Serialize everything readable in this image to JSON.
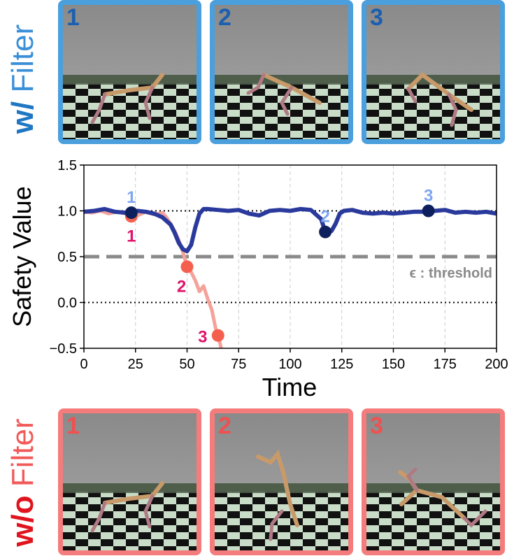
{
  "top_row": {
    "label_prefix": "w/",
    "label_word": "Filter",
    "prefix_color": "#1f77c4",
    "word_color": "#3a8fd8",
    "frame_color": "#4a9fdc",
    "number_color": "#1a5fb0",
    "frames": [
      {
        "number": "1"
      },
      {
        "number": "2"
      },
      {
        "number": "3"
      }
    ]
  },
  "bottom_row": {
    "label_prefix": "w/o",
    "label_word": "Filter",
    "prefix_color": "#e0141e",
    "word_color": "#f25a5a",
    "frame_color": "#f47c7c",
    "number_color": "#f05050",
    "frames": [
      {
        "number": "1"
      },
      {
        "number": "2"
      },
      {
        "number": "3"
      }
    ]
  },
  "chart_data": {
    "type": "line",
    "xlabel": "Time",
    "ylabel": "Safety Value",
    "xlim": [
      0,
      200
    ],
    "ylim": [
      -0.5,
      1.5
    ],
    "xticks": [
      0,
      25,
      50,
      75,
      100,
      125,
      150,
      175,
      200
    ],
    "yticks": [
      -0.5,
      0.0,
      0.5,
      1.0,
      1.5
    ],
    "ytick_labels": [
      "−0.5",
      "0.0",
      "0.5",
      "1.0",
      "1.5"
    ],
    "threshold": {
      "value": 0.5,
      "label": "ϵ : threshold",
      "color": "#8a8a8a"
    },
    "reference_lines": [
      1.0,
      0.0
    ],
    "series": [
      {
        "name": "w/o Filter",
        "color": "#f4a29a",
        "x": [
          0,
          4,
          8,
          12,
          16,
          20,
          23,
          26,
          30,
          34,
          38,
          40,
          42,
          44,
          46,
          48,
          50,
          52,
          54,
          56,
          58,
          60,
          62,
          64,
          65,
          66,
          67
        ],
        "y": [
          0.99,
          0.98,
          1.0,
          0.97,
          0.99,
          0.97,
          0.94,
          0.95,
          0.99,
          0.96,
          0.98,
          0.93,
          0.86,
          0.78,
          0.68,
          0.55,
          0.39,
          0.33,
          0.24,
          0.12,
          0.18,
          0.04,
          -0.08,
          -0.3,
          -0.36,
          -0.45,
          -0.55
        ],
        "markers": [
          {
            "label": "1",
            "x": 23,
            "y": 0.94
          },
          {
            "label": "2",
            "x": 50,
            "y": 0.39
          },
          {
            "label": "3",
            "x": 65,
            "y": -0.36
          }
        ],
        "marker_color": "#f5604e",
        "label_color": "#e0126a"
      },
      {
        "name": "w/ Filter",
        "color": "#2a3a9c",
        "x": [
          0,
          5,
          10,
          15,
          20,
          23,
          26,
          30,
          34,
          38,
          42,
          44,
          46,
          48,
          50,
          52,
          54,
          56,
          58,
          60,
          65,
          70,
          75,
          80,
          85,
          90,
          95,
          100,
          105,
          110,
          115,
          117,
          120,
          122,
          124,
          126,
          130,
          135,
          140,
          145,
          150,
          155,
          160,
          165,
          167,
          170,
          175,
          180,
          185,
          190,
          195,
          200
        ],
        "y": [
          0.99,
          1.0,
          1.02,
          0.99,
          0.98,
          0.98,
          1.0,
          0.99,
          0.97,
          0.93,
          0.85,
          0.76,
          0.65,
          0.58,
          0.56,
          0.63,
          0.82,
          0.97,
          1.02,
          1.02,
          1.01,
          1.0,
          1.01,
          0.97,
          0.95,
          1.0,
          1.01,
          1.0,
          1.02,
          1.01,
          0.91,
          0.77,
          0.78,
          0.86,
          0.97,
          1.0,
          1.01,
          0.98,
          0.97,
          0.98,
          0.97,
          0.98,
          0.99,
          0.99,
          1.0,
          1.0,
          1.01,
          0.98,
          0.99,
          0.98,
          0.99,
          0.97
        ],
        "markers": [
          {
            "label": "1",
            "x": 23,
            "y": 0.98
          },
          {
            "label": "2",
            "x": 117,
            "y": 0.77
          },
          {
            "label": "3",
            "x": 167,
            "y": 1.0
          }
        ],
        "marker_color": "#0d1f5c",
        "label_color": "#7fa6f2"
      }
    ]
  }
}
